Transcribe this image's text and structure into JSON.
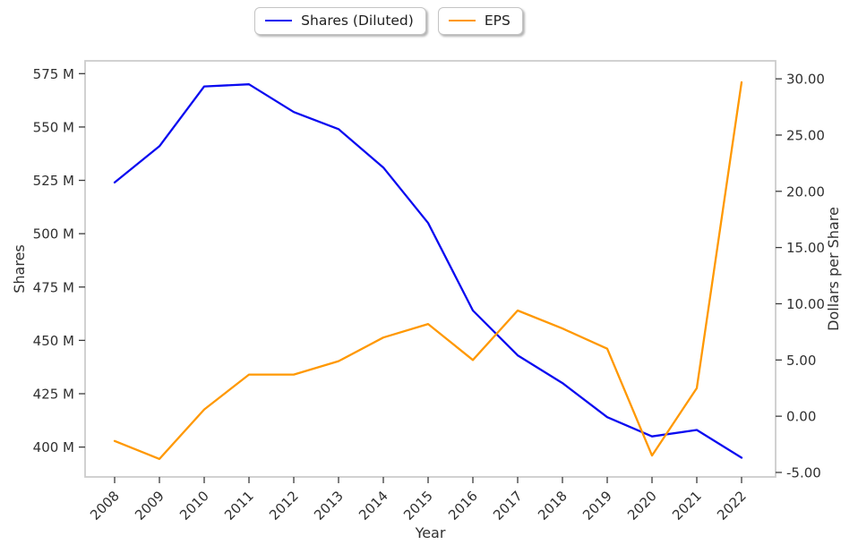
{
  "figure": {
    "background": "#ffffff",
    "plot_border_color": "#cccccc",
    "tick_mark_color": "#3b3b3b",
    "text_color": "#303030"
  },
  "legend": {
    "position": "top-center",
    "items": [
      {
        "label": "Shares (Diluted)",
        "color": "#0a0af0"
      },
      {
        "label": "EPS",
        "color": "#ff9800"
      }
    ]
  },
  "chart_data": {
    "type": "line",
    "title": "",
    "xlabel": "Year",
    "ylabel_left": "Shares",
    "ylabel_right": "Dollars per Share",
    "grid": false,
    "legend_position": "top-center",
    "x_categories": [
      "2008",
      "2009",
      "2010",
      "2011",
      "2012",
      "2013",
      "2014",
      "2015",
      "2016",
      "2017",
      "2018",
      "2019",
      "2020",
      "2021",
      "2022"
    ],
    "series": [
      {
        "name": "Shares (Diluted)",
        "axis": "left",
        "color": "#0a0af0",
        "unit": "millions of shares",
        "values": [
          524,
          541,
          569,
          570,
          557,
          549,
          531,
          505,
          464,
          443,
          430,
          414,
          405,
          408,
          395
        ]
      },
      {
        "name": "EPS",
        "axis": "right",
        "color": "#ff9800",
        "unit": "dollars per share",
        "values": [
          -2.2,
          -3.8,
          0.6,
          3.7,
          3.7,
          4.9,
          7.0,
          8.2,
          5.0,
          9.4,
          7.8,
          6.0,
          -3.5,
          2.5,
          29.7
        ]
      }
    ],
    "left_axis": {
      "range": [
        386,
        581
      ],
      "tick_values": [
        400,
        425,
        450,
        475,
        500,
        525,
        550,
        575
      ],
      "tick_labels": [
        "400 M",
        "425 M",
        "450 M",
        "475 M",
        "500 M",
        "525 M",
        "550 M",
        "575 M"
      ]
    },
    "right_axis": {
      "range": [
        -5.4,
        31.6
      ],
      "tick_values": [
        -5,
        0,
        5,
        10,
        15,
        20,
        25,
        30
      ],
      "tick_labels": [
        "-5.00",
        "0.00",
        "5.00",
        "10.00",
        "15.00",
        "20.00",
        "25.00",
        "30.00"
      ]
    }
  }
}
